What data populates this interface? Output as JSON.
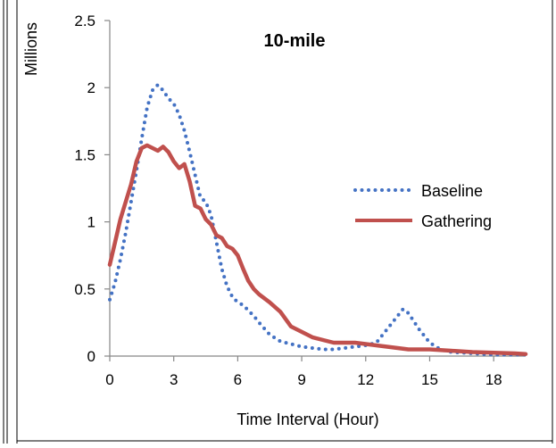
{
  "chart_data": {
    "type": "line",
    "title": "10-mile",
    "xlabel": "Time Interval (Hour)",
    "ylabel": "Millions",
    "xlim": [
      0,
      19.5
    ],
    "ylim": [
      0,
      2.5
    ],
    "xticks": [
      0,
      3,
      6,
      9,
      12,
      15,
      18
    ],
    "yticks": [
      0,
      0.5,
      1,
      1.5,
      2,
      2.5
    ],
    "ytick_labels": [
      "0",
      "0.5",
      "1",
      "1.5",
      "2",
      "2.5"
    ],
    "grid": false,
    "legend_position": "right",
    "series": [
      {
        "name": "Baseline",
        "color": "#4472c4",
        "style": "dotted",
        "points": [
          [
            0,
            0.42
          ],
          [
            0.25,
            0.55
          ],
          [
            0.5,
            0.72
          ],
          [
            0.75,
            0.92
          ],
          [
            1,
            1.15
          ],
          [
            1.25,
            1.38
          ],
          [
            1.5,
            1.62
          ],
          [
            1.75,
            1.85
          ],
          [
            2,
            1.98
          ],
          [
            2.25,
            2.02
          ],
          [
            2.5,
            1.98
          ],
          [
            2.75,
            1.92
          ],
          [
            3,
            1.88
          ],
          [
            3.25,
            1.8
          ],
          [
            3.5,
            1.68
          ],
          [
            3.75,
            1.52
          ],
          [
            4,
            1.35
          ],
          [
            4.25,
            1.18
          ],
          [
            4.5,
            1.15
          ],
          [
            4.75,
            1.05
          ],
          [
            5,
            0.85
          ],
          [
            5.25,
            0.65
          ],
          [
            5.5,
            0.52
          ],
          [
            5.75,
            0.44
          ],
          [
            6,
            0.4
          ],
          [
            6.25,
            0.38
          ],
          [
            6.5,
            0.34
          ],
          [
            6.75,
            0.3
          ],
          [
            7,
            0.25
          ],
          [
            7.5,
            0.16
          ],
          [
            8,
            0.11
          ],
          [
            8.5,
            0.09
          ],
          [
            9,
            0.07
          ],
          [
            9.5,
            0.06
          ],
          [
            10,
            0.05
          ],
          [
            10.5,
            0.05
          ],
          [
            11,
            0.06
          ],
          [
            11.5,
            0.07
          ],
          [
            12,
            0.08
          ],
          [
            12.5,
            0.1
          ],
          [
            13,
            0.2
          ],
          [
            13.5,
            0.3
          ],
          [
            13.75,
            0.35
          ],
          [
            14,
            0.32
          ],
          [
            14.5,
            0.2
          ],
          [
            15,
            0.1
          ],
          [
            15.5,
            0.05
          ],
          [
            16,
            0.03
          ],
          [
            17,
            0.02
          ],
          [
            18,
            0.01
          ],
          [
            19,
            0.01
          ],
          [
            19.5,
            0.01
          ]
        ]
      },
      {
        "name": "Gathering",
        "color": "#c0504d",
        "style": "solid",
        "points": [
          [
            0,
            0.68
          ],
          [
            0.25,
            0.85
          ],
          [
            0.5,
            1.02
          ],
          [
            0.75,
            1.15
          ],
          [
            1,
            1.28
          ],
          [
            1.25,
            1.45
          ],
          [
            1.5,
            1.55
          ],
          [
            1.75,
            1.57
          ],
          [
            2,
            1.55
          ],
          [
            2.25,
            1.53
          ],
          [
            2.5,
            1.56
          ],
          [
            2.75,
            1.52
          ],
          [
            3,
            1.45
          ],
          [
            3.25,
            1.4
          ],
          [
            3.5,
            1.43
          ],
          [
            3.75,
            1.3
          ],
          [
            4,
            1.12
          ],
          [
            4.25,
            1.1
          ],
          [
            4.5,
            1.02
          ],
          [
            4.75,
            0.98
          ],
          [
            5,
            0.9
          ],
          [
            5.25,
            0.88
          ],
          [
            5.5,
            0.82
          ],
          [
            5.75,
            0.8
          ],
          [
            6,
            0.75
          ],
          [
            6.25,
            0.65
          ],
          [
            6.5,
            0.56
          ],
          [
            6.75,
            0.5
          ],
          [
            7,
            0.46
          ],
          [
            7.5,
            0.4
          ],
          [
            8,
            0.33
          ],
          [
            8.5,
            0.22
          ],
          [
            9,
            0.18
          ],
          [
            9.5,
            0.14
          ],
          [
            10,
            0.12
          ],
          [
            10.5,
            0.1
          ],
          [
            11,
            0.1
          ],
          [
            11.5,
            0.1
          ],
          [
            12,
            0.09
          ],
          [
            12.5,
            0.08
          ],
          [
            13,
            0.07
          ],
          [
            13.5,
            0.06
          ],
          [
            14,
            0.05
          ],
          [
            15,
            0.05
          ],
          [
            16,
            0.04
          ],
          [
            17,
            0.03
          ],
          [
            18,
            0.025
          ],
          [
            19,
            0.02
          ],
          [
            19.5,
            0.015
          ]
        ]
      }
    ]
  }
}
